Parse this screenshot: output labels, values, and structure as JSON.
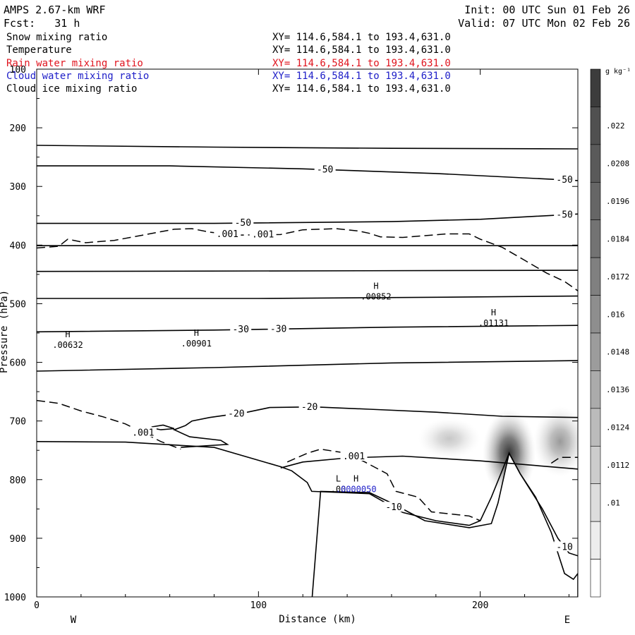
{
  "header": {
    "title": "AMPS 2.67-km WRF",
    "init": "Init: 00 UTC Sun 01 Feb 26",
    "fcst": "Fcst:   31 h",
    "valid": "Valid: 07 UTC Mon 02 Feb 26"
  },
  "fields": [
    {
      "name": "Snow mixing ratio",
      "xy": "XY= 114.6,584.1 to 193.4,631.0",
      "color": "#000000"
    },
    {
      "name": "Temperature",
      "xy": "XY= 114.6,584.1 to 193.4,631.0",
      "color": "#000000"
    },
    {
      "name": "Rain water mixing ratio",
      "xy": "XY= 114.6,584.1 to 193.4,631.0",
      "color": "#e0141e"
    },
    {
      "name": "Cloud water mixing ratio",
      "xy": "XY= 114.6,584.1 to 193.4,631.0",
      "color": "#1e1ec8"
    },
    {
      "name": "Cloud ice mixing ratio",
      "xy": "XY= 114.6,584.1 to 193.4,631.0",
      "color": "#000000"
    }
  ],
  "colorbar": {
    "unit": "g kg⁻¹",
    "labels": [
      ".022",
      ".0208",
      ".0196",
      ".0184",
      ".0172",
      ".016",
      ".0148",
      ".0136",
      ".0124",
      ".0112",
      ".01"
    ],
    "colors": [
      "#3c3c3c",
      "#505050",
      "#5a5a5a",
      "#666666",
      "#737373",
      "#808080",
      "#8e8e8e",
      "#9c9c9c",
      "#ababab",
      "#bbbbbb",
      "#cccccc",
      "#dddddd",
      "#ededed",
      "#ffffff"
    ]
  },
  "chart_data": {
    "type": "cross-section",
    "xlabel": "Distance (km)",
    "ylabel": "Pressure (hPa)",
    "xlim": [
      0,
      244
    ],
    "ylim": [
      100,
      1000
    ],
    "y_inverted": true,
    "x_ticks": [
      0,
      100,
      200
    ],
    "y_ticks": [
      100,
      200,
      300,
      400,
      500,
      600,
      700,
      800,
      900,
      1000
    ],
    "x_end_labels": {
      "left": "W",
      "right": "E"
    },
    "temperature_isotherms": [
      {
        "points": [
          [
            0,
            230
          ],
          [
            80,
            233
          ],
          [
            160,
            235
          ],
          [
            244,
            236
          ]
        ]
      },
      {
        "points": [
          [
            0,
            265
          ],
          [
            60,
            265
          ],
          [
            120,
            270
          ],
          [
            180,
            278
          ],
          [
            244,
            290
          ]
        ],
        "labels": [
          {
            "text": "-50",
            "x": 130
          },
          {
            "text": "-50",
            "x": 238
          }
        ]
      },
      {
        "points": [
          [
            0,
            363
          ],
          [
            80,
            363
          ],
          [
            160,
            360
          ],
          [
            200,
            356
          ],
          [
            244,
            347
          ]
        ],
        "labels": [
          {
            "text": "-50",
            "x": 93
          },
          {
            "text": "-50",
            "x": 238
          }
        ]
      },
      {
        "points": [
          [
            0,
            401
          ],
          [
            244,
            401
          ]
        ]
      },
      {
        "points": [
          [
            0,
            445
          ],
          [
            244,
            443
          ]
        ]
      },
      {
        "points": [
          [
            0,
            491
          ],
          [
            100,
            491
          ],
          [
            180,
            489
          ],
          [
            244,
            487
          ]
        ]
      },
      {
        "points": [
          [
            0,
            548
          ],
          [
            80,
            545
          ],
          [
            160,
            540
          ],
          [
            244,
            537
          ]
        ],
        "labels": [
          {
            "text": "-30",
            "x": 92
          },
          {
            "text": "-30",
            "x": 109
          }
        ]
      },
      {
        "points": [
          [
            0,
            615
          ],
          [
            80,
            609
          ],
          [
            160,
            601
          ],
          [
            244,
            597
          ]
        ]
      },
      {
        "points": [
          [
            0,
            735
          ],
          [
            40,
            736
          ],
          [
            80,
            745
          ],
          [
            110,
            778
          ],
          [
            115,
            785
          ],
          [
            122,
            805
          ],
          [
            124,
            820
          ],
          [
            150,
            824
          ],
          [
            165,
            856
          ],
          [
            180,
            870
          ],
          [
            195,
            878
          ],
          [
            200,
            870
          ],
          [
            205,
            830
          ],
          [
            213,
            755
          ],
          [
            218,
            790
          ],
          [
            228,
            850
          ],
          [
            235,
            900
          ],
          [
            240,
            925
          ],
          [
            244,
            930
          ]
        ],
        "labels": [
          {
            "text": "-10",
            "x": 161
          },
          {
            "text": "-10",
            "x": 238
          }
        ]
      },
      {
        "points": [
          [
            110,
            780
          ],
          [
            120,
            770
          ],
          [
            140,
            763
          ],
          [
            165,
            760
          ],
          [
            200,
            768
          ],
          [
            244,
            782
          ]
        ]
      }
    ],
    "isotherm_minus20": {
      "points": [
        [
          67,
          708
        ],
        [
          70,
          700
        ],
        [
          78,
          694
        ],
        [
          95,
          685
        ],
        [
          105,
          677
        ],
        [
          125,
          676
        ],
        [
          150,
          680
        ],
        [
          180,
          685
        ],
        [
          210,
          692
        ],
        [
          244,
          694
        ]
      ],
      "island": [
        [
          52,
          710
        ],
        [
          57,
          707
        ],
        [
          62,
          713
        ],
        [
          56,
          715
        ],
        [
          52,
          712
        ]
      ],
      "loop": [
        [
          67,
          708
        ],
        [
          62,
          715
        ],
        [
          69,
          727
        ],
        [
          83,
          733
        ],
        [
          86,
          740
        ],
        [
          65,
          745
        ]
      ],
      "labels": [
        {
          "text": "-20",
          "x": 90
        },
        {
          "text": "-20",
          "x": 123
        }
      ]
    },
    "dashed_contours": [
      {
        "value": ".001",
        "points": [
          [
            0,
            405
          ],
          [
            10,
            402
          ],
          [
            14,
            390
          ],
          [
            22,
            396
          ],
          [
            35,
            392
          ],
          [
            45,
            385
          ],
          [
            55,
            378
          ],
          [
            62,
            373
          ],
          [
            70,
            372
          ],
          [
            78,
            378
          ],
          [
            90,
            383
          ],
          [
            110,
            382
          ],
          [
            120,
            374
          ],
          [
            135,
            372
          ],
          [
            145,
            376
          ],
          [
            150,
            380
          ],
          [
            155,
            386
          ],
          [
            165,
            387
          ],
          [
            175,
            384
          ],
          [
            185,
            381
          ],
          [
            195,
            381
          ],
          [
            200,
            390
          ],
          [
            210,
            404
          ],
          [
            220,
            426
          ],
          [
            230,
            448
          ],
          [
            238,
            462
          ],
          [
            244,
            478
          ]
        ],
        "labels": [
          {
            "text": ".001",
            "x": 86
          },
          {
            "text": ".001",
            "x": 102
          }
        ]
      },
      {
        "value": ".001",
        "points": [
          [
            0,
            665
          ],
          [
            10,
            670
          ],
          [
            20,
            683
          ],
          [
            30,
            693
          ],
          [
            40,
            705
          ],
          [
            48,
            720
          ],
          [
            56,
            735
          ],
          [
            65,
            748
          ]
        ],
        "labels": [
          {
            "text": ".001",
            "x": 48
          }
        ]
      },
      {
        "value": ".001",
        "points": [
          [
            113,
            770
          ],
          [
            122,
            755
          ],
          [
            128,
            748
          ],
          [
            140,
            755
          ],
          [
            148,
            770
          ],
          [
            158,
            790
          ],
          [
            162,
            820
          ],
          [
            172,
            830
          ],
          [
            178,
            855
          ],
          [
            190,
            860
          ],
          [
            195,
            862
          ],
          [
            200,
            870
          ]
        ],
        "labels": [
          {
            "text": ".001",
            "x": 143
          }
        ]
      },
      {
        "value": "",
        "points": [
          [
            232,
            772
          ],
          [
            236,
            762
          ],
          [
            244,
            762
          ]
        ]
      }
    ],
    "extrema": [
      {
        "label": "H",
        "value": ".00632",
        "x": 14,
        "p": 557,
        "color": "#000000"
      },
      {
        "label": "H",
        "value": ".00901",
        "x": 72,
        "p": 555,
        "color": "#000000"
      },
      {
        "label": "H",
        "value": ".00852",
        "x": 153,
        "p": 475,
        "color": "#000000"
      },
      {
        "label": "H",
        "value": ".01131",
        "x": 206,
        "p": 520,
        "color": "#000000"
      },
      {
        "label": "L",
        "value": ".00",
        "x": 136,
        "p": 803,
        "color": "#000000"
      },
      {
        "label": "H",
        "value": ".0000050",
        "x": 144,
        "p": 803,
        "color": "#1e1ec8"
      }
    ],
    "terrain": [
      [
        0,
        1010
      ],
      [
        124,
        1010
      ],
      [
        128,
        820
      ],
      [
        150,
        822
      ],
      [
        160,
        840
      ],
      [
        175,
        870
      ],
      [
        195,
        882
      ],
      [
        205,
        875
      ],
      [
        208,
        840
      ],
      [
        213,
        755
      ],
      [
        218,
        790
      ],
      [
        225,
        830
      ],
      [
        232,
        890
      ],
      [
        238,
        960
      ],
      [
        242,
        970
      ],
      [
        244,
        960
      ],
      [
        244,
        1010
      ]
    ],
    "shaded_field": [
      {
        "x": 213,
        "p": 755,
        "rx": 12,
        "rp": 75,
        "level": 0.9
      },
      {
        "x": 236,
        "p": 735,
        "rx": 12,
        "rp": 60,
        "level": 0.45
      },
      {
        "x": 186,
        "p": 730,
        "rx": 14,
        "rp": 35,
        "level": 0.25
      }
    ]
  }
}
